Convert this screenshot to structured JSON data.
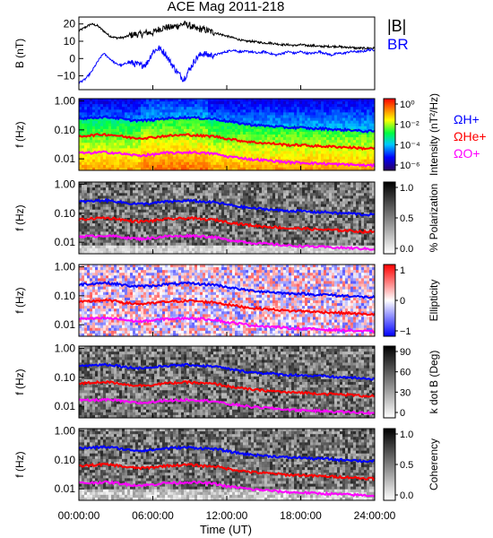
{
  "title": "ACE Mag 2011-218",
  "time_axis": {
    "label": "Time (UT)",
    "ticks": [
      "00:00:00",
      "06:00:00",
      "12:00:00",
      "18:00:00",
      "24:00:00"
    ]
  },
  "colors": {
    "B_total": "#000000",
    "B_R": "#0000ff",
    "H_plus": "#0000ff",
    "He_plus": "#ff0000",
    "O_plus": "#ff00ff"
  },
  "cyclotron_labels": [
    {
      "text": "ΩH+",
      "color": "#0000ff"
    },
    {
      "text": "ΩHe+",
      "color": "#ff0000"
    },
    {
      "text": "ΩO+",
      "color": "#ff00ff"
    }
  ],
  "chart_data": [
    {
      "type": "line",
      "ylabel": "B (nT)",
      "ylim": [
        -18,
        24
      ],
      "yticks": [
        "20",
        "10",
        "0",
        "−10"
      ],
      "xlim": [
        0,
        24
      ],
      "legend": [
        "|B|",
        "BR"
      ],
      "series": [
        {
          "name": "|B|",
          "color": "#000000",
          "x": [
            0,
            0.5,
            1,
            1.5,
            2,
            2.5,
            3,
            3.5,
            4,
            4.5,
            5,
            5.5,
            6,
            6.5,
            7,
            7.5,
            8,
            8.5,
            9,
            9.5,
            10,
            10.5,
            11,
            11.5,
            12,
            12.5,
            13,
            13.5,
            14,
            14.5,
            15,
            15.5,
            16,
            16.5,
            17,
            17.5,
            18,
            18.5,
            19,
            19.5,
            20,
            20.5,
            21,
            21.5,
            22,
            22.5,
            23,
            23.5,
            24
          ],
          "y": [
            16,
            18,
            20,
            19,
            16,
            13,
            12,
            12,
            13,
            14,
            14,
            15,
            15,
            17,
            18,
            18,
            19,
            20,
            19,
            17,
            17,
            16,
            15,
            14,
            13,
            12,
            11,
            10,
            10,
            9.5,
            9,
            9,
            8.5,
            8,
            8,
            7.5,
            8,
            7.5,
            7.5,
            7,
            7,
            7,
            7,
            6.5,
            6.5,
            6,
            6,
            6,
            6
          ]
        },
        {
          "name": "BR",
          "color": "#0000ff",
          "x": [
            0,
            0.5,
            1,
            1.5,
            2,
            2.5,
            3,
            3.5,
            4,
            4.5,
            5,
            5.5,
            6,
            6.5,
            7,
            7.5,
            8,
            8.5,
            9,
            9.5,
            10,
            10.5,
            11,
            11.5,
            12,
            12.5,
            13,
            13.5,
            14,
            14.5,
            15,
            15.5,
            16,
            16.5,
            17,
            17.5,
            18,
            18.5,
            19,
            19.5,
            20,
            20.5,
            21,
            21.5,
            22,
            22.5,
            23,
            23.5,
            24
          ],
          "y": [
            -14,
            -12,
            -8,
            -2,
            3,
            0,
            -3,
            -4,
            -2,
            -3,
            -4,
            -3,
            4,
            6,
            3,
            -3,
            -8,
            -12,
            -6,
            0,
            3,
            2,
            2,
            3,
            4,
            5,
            4,
            4,
            4,
            3,
            4,
            3,
            2,
            3,
            4,
            3,
            4,
            3,
            3,
            4,
            3,
            2,
            3,
            3,
            4,
            4,
            4,
            5,
            5
          ]
        }
      ]
    },
    {
      "type": "heatmap",
      "ylabel": "f (Hz)",
      "yticks": [
        "1.00",
        "0.10",
        "0.01"
      ],
      "colorbar": {
        "label": "Intensity (nT²/Hz)",
        "ticks": [
          "10⁰",
          "10⁻²",
          "10⁻⁴",
          "10⁻⁶"
        ],
        "scale": "rainbow"
      }
    },
    {
      "type": "heatmap",
      "ylabel": "f (Hz)",
      "yticks": [
        "1.00",
        "0.10",
        "0.01"
      ],
      "colorbar": {
        "label": "% Polarization",
        "ticks": [
          "1.0",
          "0.5",
          "0.0"
        ],
        "scale": "gray"
      }
    },
    {
      "type": "heatmap",
      "ylabel": "f (Hz)",
      "yticks": [
        "1.00",
        "0.10",
        "0.01"
      ],
      "colorbar": {
        "label": "Ellipticity",
        "ticks": [
          "1",
          "0",
          "−1"
        ],
        "scale": "diverging"
      }
    },
    {
      "type": "heatmap",
      "ylabel": "f (Hz)",
      "yticks": [
        "1.00",
        "0.10",
        "0.01"
      ],
      "colorbar": {
        "label": "k dot B (Deg)",
        "ticks": [
          "90",
          "60",
          "30",
          "0"
        ],
        "scale": "gray"
      }
    },
    {
      "type": "heatmap",
      "ylabel": "f (Hz)",
      "yticks": [
        "1.00",
        "0.10",
        "0.01"
      ],
      "colorbar": {
        "label": "Coherency",
        "ticks": [
          "1.0",
          "0.5",
          "0.0"
        ],
        "scale": "gray"
      }
    }
  ],
  "cyclotron_frequency_hz": {
    "x": [
      0,
      1,
      2,
      3,
      4,
      5,
      6,
      7,
      8,
      9,
      10,
      11,
      12,
      13,
      14,
      15,
      16,
      17,
      18,
      19,
      20,
      21,
      22,
      23,
      24
    ],
    "H_plus": [
      0.25,
      0.26,
      0.28,
      0.26,
      0.22,
      0.21,
      0.22,
      0.25,
      0.26,
      0.27,
      0.25,
      0.24,
      0.2,
      0.17,
      0.15,
      0.14,
      0.13,
      0.12,
      0.12,
      0.11,
      0.11,
      0.1,
      0.1,
      0.09,
      0.09
    ],
    "He_plus": [
      0.06,
      0.065,
      0.07,
      0.065,
      0.055,
      0.052,
      0.055,
      0.062,
      0.065,
      0.068,
      0.062,
      0.06,
      0.05,
      0.043,
      0.038,
      0.035,
      0.033,
      0.03,
      0.03,
      0.028,
      0.027,
      0.026,
      0.025,
      0.023,
      0.023
    ],
    "O_plus": [
      0.016,
      0.016,
      0.017,
      0.016,
      0.014,
      0.013,
      0.014,
      0.016,
      0.016,
      0.017,
      0.016,
      0.015,
      0.012,
      0.011,
      0.0095,
      0.009,
      0.0083,
      0.0076,
      0.0074,
      0.0071,
      0.0068,
      0.0065,
      0.0063,
      0.006,
      0.0058
    ]
  }
}
